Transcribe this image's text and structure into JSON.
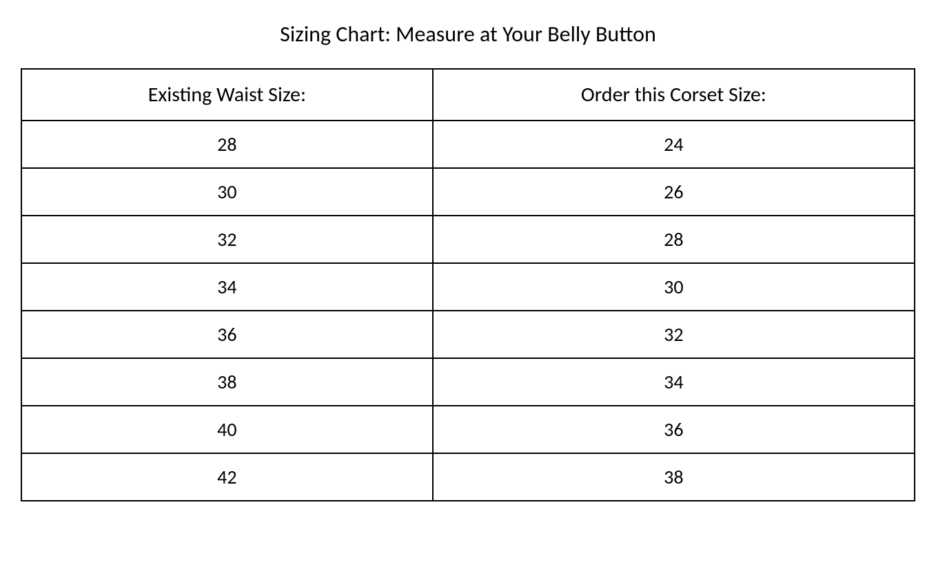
{
  "title": "Sizing Chart: Measure at Your Belly Button",
  "table": {
    "columns": [
      "Existing Waist Size:",
      "Order this Corset Size:"
    ],
    "rows": [
      [
        "28",
        "24"
      ],
      [
        "30",
        "26"
      ],
      [
        "32",
        "28"
      ],
      [
        "34",
        "30"
      ],
      [
        "36",
        "32"
      ],
      [
        "38",
        "34"
      ],
      [
        "40",
        "36"
      ],
      [
        "42",
        "38"
      ]
    ],
    "border_color": "#000000",
    "border_width": 2,
    "background_color": "#ffffff",
    "text_color": "#000000",
    "title_fontsize": 32,
    "header_fontsize": 30,
    "cell_fontsize": 28,
    "column_widths": [
      "50%",
      "50%"
    ],
    "text_align": "center"
  }
}
